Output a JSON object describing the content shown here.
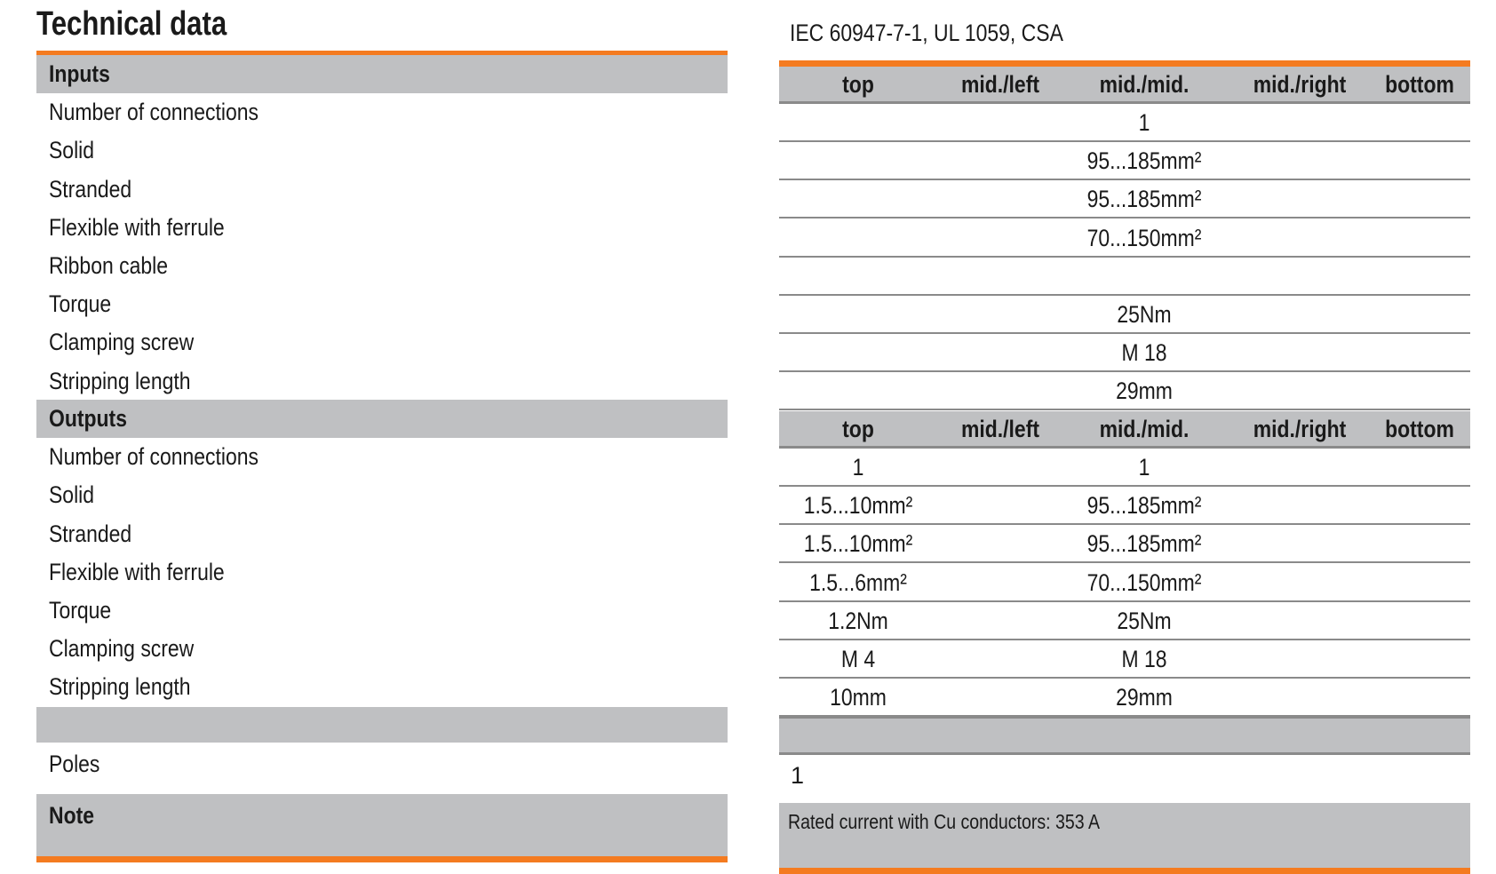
{
  "title": "Technical data",
  "standards": "IEC 60947-7-1, UL 1059, CSA",
  "inputs": {
    "header": "Inputs",
    "rows": [
      "Number of connections",
      "Solid",
      "Stranded",
      "Flexible with ferrule",
      "Ribbon cable",
      "Torque",
      "Clamping screw",
      "Stripping length"
    ]
  },
  "outputs": {
    "header": "Outputs",
    "rows": [
      "Number of connections",
      "Solid",
      "Stranded",
      "Flexible with ferrule",
      "Torque",
      "Clamping screw",
      "Stripping length"
    ]
  },
  "poles_label": "Poles",
  "note_label": "Note",
  "positions": [
    "top",
    "mid./left",
    "mid./mid.",
    "mid./right",
    "bottom"
  ],
  "inputs_table": [
    {
      "mid": "1"
    },
    {
      "mid": "95...185mm²"
    },
    {
      "mid": "95...185mm²"
    },
    {
      "mid": "70...150mm²"
    },
    {
      "mid": ""
    },
    {
      "mid": "25Nm"
    },
    {
      "mid": "M 18"
    },
    {
      "mid": "29mm"
    }
  ],
  "outputs_table": [
    {
      "top": "1",
      "mid": "1"
    },
    {
      "top": "1.5...10mm²",
      "mid": "95...185mm²"
    },
    {
      "top": "1.5...10mm²",
      "mid": "95...185mm²"
    },
    {
      "top": "1.5...6mm²",
      "mid": "70...150mm²"
    },
    {
      "top": "1.2Nm",
      "mid": "25Nm"
    },
    {
      "top": "M 4",
      "mid": "M 18"
    },
    {
      "top": "10mm",
      "mid": "29mm"
    }
  ],
  "poles_value": "1",
  "note_text": "Rated current with Cu conductors: 353 A",
  "colors": {
    "accent": "#f47b20",
    "header_gray": "#bfc0c2"
  }
}
